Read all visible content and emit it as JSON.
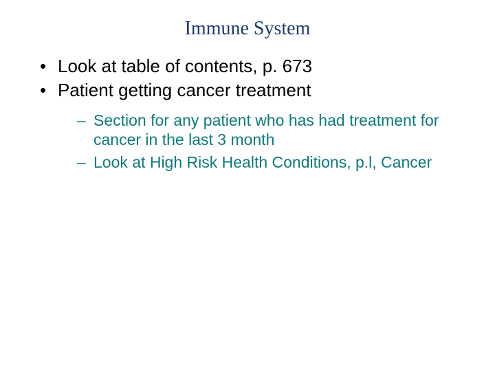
{
  "slide": {
    "title": "Immune System",
    "title_color": "#1e3a6e",
    "title_fontsize": 28,
    "bullets": [
      {
        "text": "Look at table of contents, p. 673"
      },
      {
        "text": "Patient getting cancer treatment"
      }
    ],
    "sub_bullets": [
      {
        "text": "Section for any patient who has had treatment for cancer in the last 3 month"
      },
      {
        "text": "Look at High Risk Health Conditions, p.l, Cancer"
      }
    ],
    "bullet_color": "#000000",
    "bullet_fontsize": 26,
    "sub_bullet_color": "#0d7a7a",
    "sub_bullet_fontsize": 23,
    "background_color": "#ffffff"
  }
}
